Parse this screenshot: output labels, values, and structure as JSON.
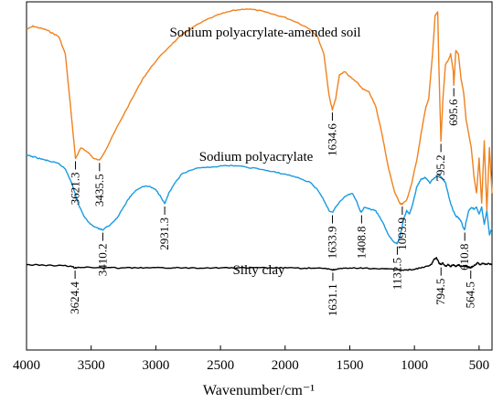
{
  "chart_data": {
    "type": "line",
    "title": "",
    "xlabel": "Wavenumber/cm⁻¹",
    "ylabel": "",
    "xlim": [
      4000,
      400
    ],
    "x_reversed": true,
    "xticks": [
      4000,
      3500,
      3000,
      2500,
      2000,
      1500,
      1000,
      500
    ],
    "xtick_labels": [
      "4000",
      "3500",
      "3000",
      "2500",
      "2000",
      "1500",
      "1000",
      "500"
    ],
    "yticks_shown": false,
    "grid": false,
    "series": [
      {
        "name": "Sodium polyacrylate-amended soil",
        "color": "#f0821e",
        "points": [
          [
            4000,
            0.92
          ],
          [
            3950,
            0.93
          ],
          [
            3900,
            0.925
          ],
          [
            3850,
            0.92
          ],
          [
            3800,
            0.91
          ],
          [
            3750,
            0.9
          ],
          [
            3700,
            0.85
          ],
          [
            3660,
            0.7
          ],
          [
            3621.3,
            0.55
          ],
          [
            3580,
            0.58
          ],
          [
            3530,
            0.57
          ],
          [
            3480,
            0.55
          ],
          [
            3435.5,
            0.545
          ],
          [
            3380,
            0.58
          ],
          [
            3300,
            0.64
          ],
          [
            3200,
            0.71
          ],
          [
            3100,
            0.78
          ],
          [
            3000,
            0.83
          ],
          [
            2900,
            0.87
          ],
          [
            2800,
            0.905
          ],
          [
            2700,
            0.93
          ],
          [
            2600,
            0.95
          ],
          [
            2500,
            0.965
          ],
          [
            2400,
            0.975
          ],
          [
            2300,
            0.98
          ],
          [
            2200,
            0.975
          ],
          [
            2100,
            0.965
          ],
          [
            2000,
            0.955
          ],
          [
            1900,
            0.94
          ],
          [
            1800,
            0.92
          ],
          [
            1750,
            0.9
          ],
          [
            1700,
            0.85
          ],
          [
            1660,
            0.73
          ],
          [
            1634.6,
            0.69
          ],
          [
            1610,
            0.72
          ],
          [
            1580,
            0.79
          ],
          [
            1540,
            0.8
          ],
          [
            1500,
            0.785
          ],
          [
            1450,
            0.77
          ],
          [
            1400,
            0.75
          ],
          [
            1350,
            0.74
          ],
          [
            1300,
            0.7
          ],
          [
            1250,
            0.62
          ],
          [
            1200,
            0.52
          ],
          [
            1150,
            0.45
          ],
          [
            1110,
            0.42
          ],
          [
            1093.9,
            0.42
          ],
          [
            1060,
            0.43
          ],
          [
            1020,
            0.48
          ],
          [
            980,
            0.55
          ],
          [
            940,
            0.64
          ],
          [
            910,
            0.7
          ],
          [
            890,
            0.72
          ],
          [
            860,
            0.85
          ],
          [
            840,
            0.96
          ],
          [
            820,
            0.97
          ],
          [
            810,
            0.8
          ],
          [
            795.2,
            0.6
          ],
          [
            780,
            0.72
          ],
          [
            760,
            0.82
          ],
          [
            740,
            0.83
          ],
          [
            720,
            0.85
          ],
          [
            700,
            0.8
          ],
          [
            695.6,
            0.76
          ],
          [
            680,
            0.86
          ],
          [
            660,
            0.85
          ],
          [
            640,
            0.78
          ],
          [
            620,
            0.74
          ],
          [
            600,
            0.66
          ],
          [
            580,
            0.62
          ],
          [
            560,
            0.58
          ],
          [
            540,
            0.5
          ],
          [
            520,
            0.45
          ],
          [
            500,
            0.55
          ],
          [
            480,
            0.42
          ],
          [
            460,
            0.6
          ],
          [
            440,
            0.4
          ],
          [
            420,
            0.58
          ],
          [
            400,
            0.45
          ]
        ],
        "peaks": [
          {
            "x": 3621.3,
            "label": "3621.3"
          },
          {
            "x": 3435.5,
            "label": "3435.5"
          },
          {
            "x": 1634.6,
            "label": "1634.6"
          },
          {
            "x": 1093.9,
            "label": "1093.9"
          },
          {
            "x": 795.2,
            "label": "795.2"
          },
          {
            "x": 695.6,
            "label": "695.6"
          }
        ]
      },
      {
        "name": "Sodium polyacrylate",
        "color": "#1a9be0",
        "points": [
          [
            4000,
            0.56
          ],
          [
            3950,
            0.555
          ],
          [
            3900,
            0.55
          ],
          [
            3850,
            0.545
          ],
          [
            3800,
            0.54
          ],
          [
            3750,
            0.535
          ],
          [
            3700,
            0.52
          ],
          [
            3650,
            0.48
          ],
          [
            3600,
            0.42
          ],
          [
            3550,
            0.38
          ],
          [
            3500,
            0.36
          ],
          [
            3450,
            0.35
          ],
          [
            3410.2,
            0.345
          ],
          [
            3350,
            0.36
          ],
          [
            3300,
            0.38
          ],
          [
            3250,
            0.41
          ],
          [
            3200,
            0.44
          ],
          [
            3150,
            0.46
          ],
          [
            3100,
            0.47
          ],
          [
            3050,
            0.47
          ],
          [
            3000,
            0.46
          ],
          [
            2960,
            0.44
          ],
          [
            2931.3,
            0.42
          ],
          [
            2900,
            0.45
          ],
          [
            2850,
            0.48
          ],
          [
            2800,
            0.505
          ],
          [
            2700,
            0.52
          ],
          [
            2600,
            0.525
          ],
          [
            2500,
            0.528
          ],
          [
            2400,
            0.53
          ],
          [
            2300,
            0.525
          ],
          [
            2200,
            0.52
          ],
          [
            2100,
            0.512
          ],
          [
            2000,
            0.505
          ],
          [
            1900,
            0.495
          ],
          [
            1800,
            0.48
          ],
          [
            1750,
            0.46
          ],
          [
            1700,
            0.43
          ],
          [
            1660,
            0.4
          ],
          [
            1633.9,
            0.395
          ],
          [
            1610,
            0.41
          ],
          [
            1570,
            0.43
          ],
          [
            1520,
            0.445
          ],
          [
            1480,
            0.45
          ],
          [
            1450,
            0.43
          ],
          [
            1420,
            0.4
          ],
          [
            1408.8,
            0.395
          ],
          [
            1390,
            0.41
          ],
          [
            1350,
            0.405
          ],
          [
            1300,
            0.4
          ],
          [
            1250,
            0.37
          ],
          [
            1200,
            0.33
          ],
          [
            1160,
            0.31
          ],
          [
            1132.5,
            0.305
          ],
          [
            1110,
            0.33
          ],
          [
            1080,
            0.38
          ],
          [
            1060,
            0.4
          ],
          [
            1040,
            0.39
          ],
          [
            1020,
            0.41
          ],
          [
            1000,
            0.44
          ],
          [
            980,
            0.47
          ],
          [
            950,
            0.49
          ],
          [
            920,
            0.495
          ],
          [
            900,
            0.49
          ],
          [
            880,
            0.48
          ],
          [
            860,
            0.49
          ],
          [
            840,
            0.495
          ],
          [
            820,
            0.505
          ],
          [
            800,
            0.5
          ],
          [
            780,
            0.49
          ],
          [
            760,
            0.48
          ],
          [
            740,
            0.45
          ],
          [
            720,
            0.42
          ],
          [
            700,
            0.4
          ],
          [
            680,
            0.385
          ],
          [
            660,
            0.38
          ],
          [
            640,
            0.37
          ],
          [
            620,
            0.35
          ],
          [
            610.8,
            0.345
          ],
          [
            600,
            0.37
          ],
          [
            580,
            0.4
          ],
          [
            560,
            0.41
          ],
          [
            540,
            0.405
          ],
          [
            520,
            0.41
          ],
          [
            500,
            0.39
          ],
          [
            480,
            0.41
          ],
          [
            460,
            0.36
          ],
          [
            440,
            0.4
          ],
          [
            420,
            0.33
          ],
          [
            400,
            0.35
          ]
        ],
        "peaks": [
          {
            "x": 3410.2,
            "label": "3410.2"
          },
          {
            "x": 2931.3,
            "label": "2931.3"
          },
          {
            "x": 1633.9,
            "label": "1633.9"
          },
          {
            "x": 1408.8,
            "label": "1408.8"
          },
          {
            "x": 1132.5,
            "label": "1132.5"
          },
          {
            "x": 610.8,
            "label": "610.8"
          }
        ]
      },
      {
        "name": "Silty clay",
        "color": "#000000",
        "points": [
          [
            4000,
            0.245
          ],
          [
            3900,
            0.244
          ],
          [
            3800,
            0.243
          ],
          [
            3700,
            0.242
          ],
          [
            3650,
            0.24
          ],
          [
            3624.4,
            0.236
          ],
          [
            3600,
            0.238
          ],
          [
            3500,
            0.237
          ],
          [
            3400,
            0.236
          ],
          [
            3300,
            0.236
          ],
          [
            3200,
            0.236
          ],
          [
            3100,
            0.236
          ],
          [
            3000,
            0.236
          ],
          [
            2900,
            0.236
          ],
          [
            2800,
            0.236
          ],
          [
            2700,
            0.236
          ],
          [
            2600,
            0.236
          ],
          [
            2500,
            0.236
          ],
          [
            2400,
            0.236
          ],
          [
            2300,
            0.236
          ],
          [
            2200,
            0.236
          ],
          [
            2100,
            0.236
          ],
          [
            2000,
            0.236
          ],
          [
            1900,
            0.235
          ],
          [
            1800,
            0.235
          ],
          [
            1700,
            0.234
          ],
          [
            1650,
            0.232
          ],
          [
            1631.1,
            0.23
          ],
          [
            1610,
            0.232
          ],
          [
            1550,
            0.234
          ],
          [
            1500,
            0.235
          ],
          [
            1400,
            0.235
          ],
          [
            1300,
            0.234
          ],
          [
            1200,
            0.232
          ],
          [
            1100,
            0.23
          ],
          [
            1050,
            0.23
          ],
          [
            1000,
            0.232
          ],
          [
            950,
            0.236
          ],
          [
            900,
            0.24
          ],
          [
            870,
            0.245
          ],
          [
            850,
            0.26
          ],
          [
            830,
            0.265
          ],
          [
            810,
            0.25
          ],
          [
            794.5,
            0.245
          ],
          [
            780,
            0.25
          ],
          [
            760,
            0.24
          ],
          [
            740,
            0.245
          ],
          [
            720,
            0.24
          ],
          [
            700,
            0.245
          ],
          [
            680,
            0.24
          ],
          [
            660,
            0.245
          ],
          [
            640,
            0.24
          ],
          [
            620,
            0.242
          ],
          [
            600,
            0.24
          ],
          [
            580,
            0.238
          ],
          [
            564.5,
            0.236
          ],
          [
            550,
            0.24
          ],
          [
            530,
            0.245
          ],
          [
            510,
            0.25
          ],
          [
            490,
            0.245
          ],
          [
            470,
            0.25
          ],
          [
            450,
            0.245
          ],
          [
            430,
            0.248
          ],
          [
            400,
            0.245
          ]
        ],
        "peaks": [
          {
            "x": 3624.4,
            "label": "3624.4"
          },
          {
            "x": 1631.1,
            "label": "1631.1"
          },
          {
            "x": 794.5,
            "label": "794.5"
          },
          {
            "x": 564.5,
            "label": "564.5"
          }
        ]
      }
    ]
  }
}
